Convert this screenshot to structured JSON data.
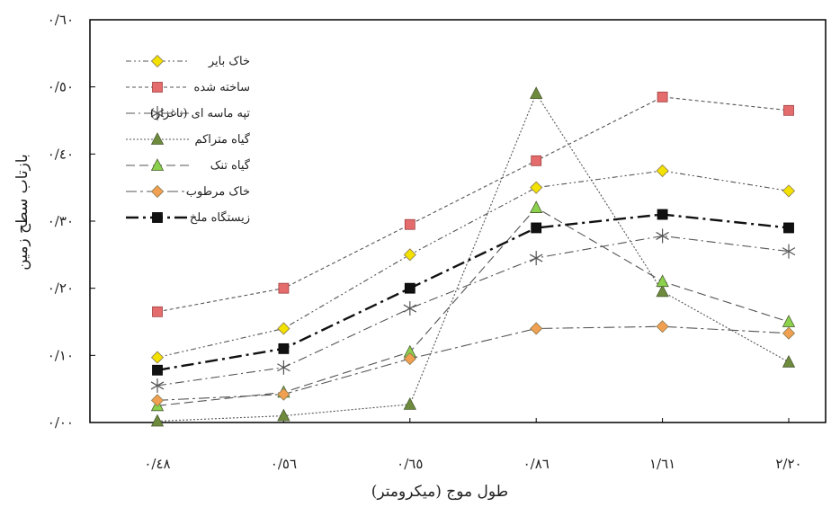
{
  "chart_data": {
    "type": "line",
    "xlabel": "طول موج (میکرومتر)",
    "ylabel": "بازتاب سطح زمین",
    "categories": [
      "۰/٤٨",
      "۰/٥٦",
      "۰/٦٥",
      "۰/٨٦",
      "١/٦١",
      "٢/٢۰"
    ],
    "ylim": [
      0,
      0.6
    ],
    "yticks": [
      0,
      0.1,
      0.2,
      0.3,
      0.4,
      0.5,
      0.6
    ],
    "ytick_labels": [
      "۰/۰۰",
      "۰/١۰",
      "۰/٢۰",
      "۰/٣۰",
      "۰/٤۰",
      "۰/٥۰",
      "۰/٦۰"
    ],
    "grid": false,
    "legend_position": "top-left",
    "series": [
      {
        "name": "خاک بایر",
        "values": [
          0.097,
          0.14,
          0.25,
          0.35,
          0.375,
          0.345
        ],
        "color": "#f3e100",
        "marker": "diamond",
        "dash": "6,3,2,3,2,3"
      },
      {
        "name": "ساخته شده",
        "values": [
          0.165,
          0.2,
          0.295,
          0.39,
          0.485,
          0.465
        ],
        "color": "#e46c6c",
        "marker": "square",
        "dash": "4,3"
      },
      {
        "name": "تپه ماسه ای (ناغزار)",
        "values": [
          0.055,
          0.082,
          0.17,
          0.245,
          0.278,
          0.255
        ],
        "color": "#7f7f7f",
        "marker": "asterisk",
        "dash": "10,4,2,4"
      },
      {
        "name": "گیاه متراکم",
        "values": [
          0.002,
          0.01,
          0.027,
          0.49,
          0.195,
          0.09
        ],
        "color": "#6e8b3d",
        "marker": "triangle",
        "dash": "2,2"
      },
      {
        "name": "گیاه تنک",
        "values": [
          0.025,
          0.045,
          0.105,
          0.32,
          0.21,
          0.15
        ],
        "color": "#8bd14b",
        "marker": "triangle",
        "dash": "10,5"
      },
      {
        "name": "خاک مرطوب",
        "values": [
          0.033,
          0.042,
          0.095,
          0.14,
          0.143,
          0.133
        ],
        "color": "#f0a050",
        "marker": "diamond",
        "dash": "12,4,3,4"
      },
      {
        "name": "زیستگاه ملخ",
        "values": [
          0.078,
          0.11,
          0.2,
          0.29,
          0.31,
          0.29
        ],
        "color": "#111111",
        "marker": "square-filled",
        "dash": "14,5,3,5"
      }
    ]
  }
}
